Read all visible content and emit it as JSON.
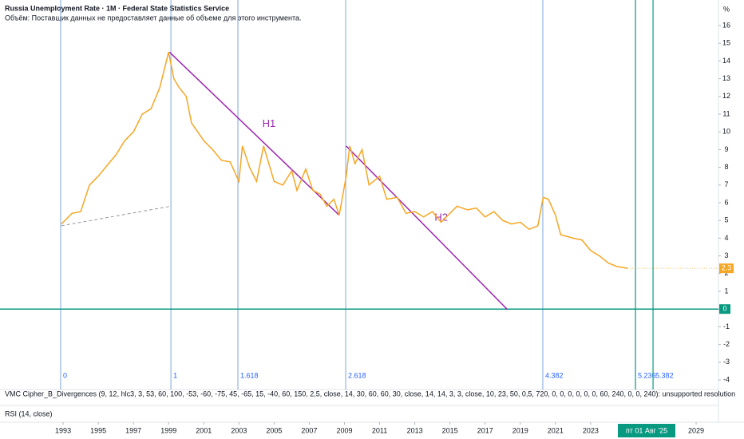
{
  "chart_data": {
    "type": "line",
    "title": "Russia Unemployment Rate · 1M · Federal State Statistics Service",
    "subtitle": "Объём: Поставщик данных не предоставляет данные об объеме для этого инструмента.",
    "unit_label": "%",
    "x": [
      1992.9,
      1993.5,
      1994,
      1994.5,
      1995,
      1996,
      1996.5,
      1997,
      1997.5,
      1998,
      1998.5,
      1999,
      1999.3,
      1999.6,
      2000,
      2000.3,
      2001,
      2001.5,
      2002,
      2002.5,
      2003,
      2003.2,
      2003.6,
      2004,
      2004.4,
      2005,
      2005.5,
      2006,
      2006.3,
      2006.8,
      2007.2,
      2007.6,
      2008,
      2008.4,
      2008.7,
      2009.1,
      2009.3,
      2009.6,
      2010,
      2010.4,
      2011,
      2011.4,
      2012,
      2012.5,
      2013,
      2013.5,
      2014,
      2014.5,
      2015.4,
      2016,
      2016.5,
      2017,
      2017.5,
      2018,
      2018.5,
      2019,
      2019.5,
      2020,
      2020.3,
      2020.6,
      2021,
      2021.3,
      2022,
      2022.5,
      2023,
      2023.5,
      2024,
      2024.5,
      2025.1
    ],
    "values": [
      4.8,
      5.4,
      5.5,
      7.0,
      7.5,
      8.7,
      9.5,
      10.0,
      11.0,
      11.3,
      12.5,
      14.5,
      13.0,
      12.5,
      12.0,
      10.5,
      9.5,
      9.0,
      8.4,
      8.3,
      7.2,
      9.2,
      8.0,
      7.2,
      9.2,
      7.2,
      7.0,
      7.8,
      6.7,
      7.9,
      6.7,
      6.5,
      5.8,
      6.2,
      5.3,
      7.5,
      9.2,
      8.2,
      9.0,
      7.0,
      7.5,
      6.2,
      6.3,
      5.4,
      5.5,
      5.2,
      5.5,
      4.9,
      5.8,
      5.6,
      5.7,
      5.2,
      5.5,
      5.0,
      4.8,
      4.9,
      4.5,
      4.7,
      6.3,
      6.2,
      5.3,
      4.2,
      4.0,
      3.9,
      3.3,
      3.0,
      2.6,
      2.4,
      2.3
    ],
    "color": "#f5a623",
    "xlim": [
      1989.41,
      2030.27
    ],
    "ylim": [
      -4.63,
      17.44
    ],
    "xticks": [
      1993,
      1995,
      1997,
      1999,
      2001,
      2003,
      2005,
      2007,
      2009,
      2011,
      2013,
      2015,
      2017,
      2019,
      2021,
      2023,
      2029
    ],
    "yticks": [
      -4,
      -3,
      -2,
      -1,
      0,
      1,
      2,
      3,
      4,
      5,
      6,
      7,
      8,
      9,
      10,
      11,
      12,
      13,
      14,
      15,
      16
    ],
    "hline": 0,
    "hline_color": "#089981",
    "crosshair_label": "пт 01 Авг '25",
    "fib_levels": [
      {
        "level": 0,
        "x": 1992.86
      },
      {
        "level": 1,
        "x": 1999.13
      },
      {
        "level": 1.618,
        "x": 2002.94
      },
      {
        "level": 2.618,
        "x": 2009.07
      },
      {
        "level": 4.382,
        "x": 2020.28
      },
      {
        "level": 5.236,
        "x": 2025.55
      },
      {
        "level": 5.382,
        "x": 2026.55
      }
    ],
    "trend_lines": [
      {
        "label": "H1",
        "x": [
          1999.05,
          2008.7
        ],
        "y": [
          14.5,
          5.3
        ],
        "color": "#9c27b0"
      },
      {
        "label": "H2",
        "x": [
          2009.1,
          2018.24
        ],
        "y": [
          9.2,
          0
        ],
        "color": "#9c27b0"
      }
    ],
    "dashed_line": {
      "x": [
        1992.9,
        1999.1
      ],
      "y": [
        4.7,
        5.8
      ]
    },
    "indicators": [
      "VMC Cipher_B_Divergences (9, 12, hlc3, 3, 53, 60, 100, -53, -60, -75, 45, -65, 15, -40, 60, 150, 2,5, close, 14, 30, 60, 60, 30, close, 14, 14, 3, 3, close, 10, 23, 50, 0,5, 720, 0, 0, 0, 0, 0, 0, 60, 240, 0, 0, 240): unsupported resolution",
      "RSI (14, close)"
    ]
  }
}
